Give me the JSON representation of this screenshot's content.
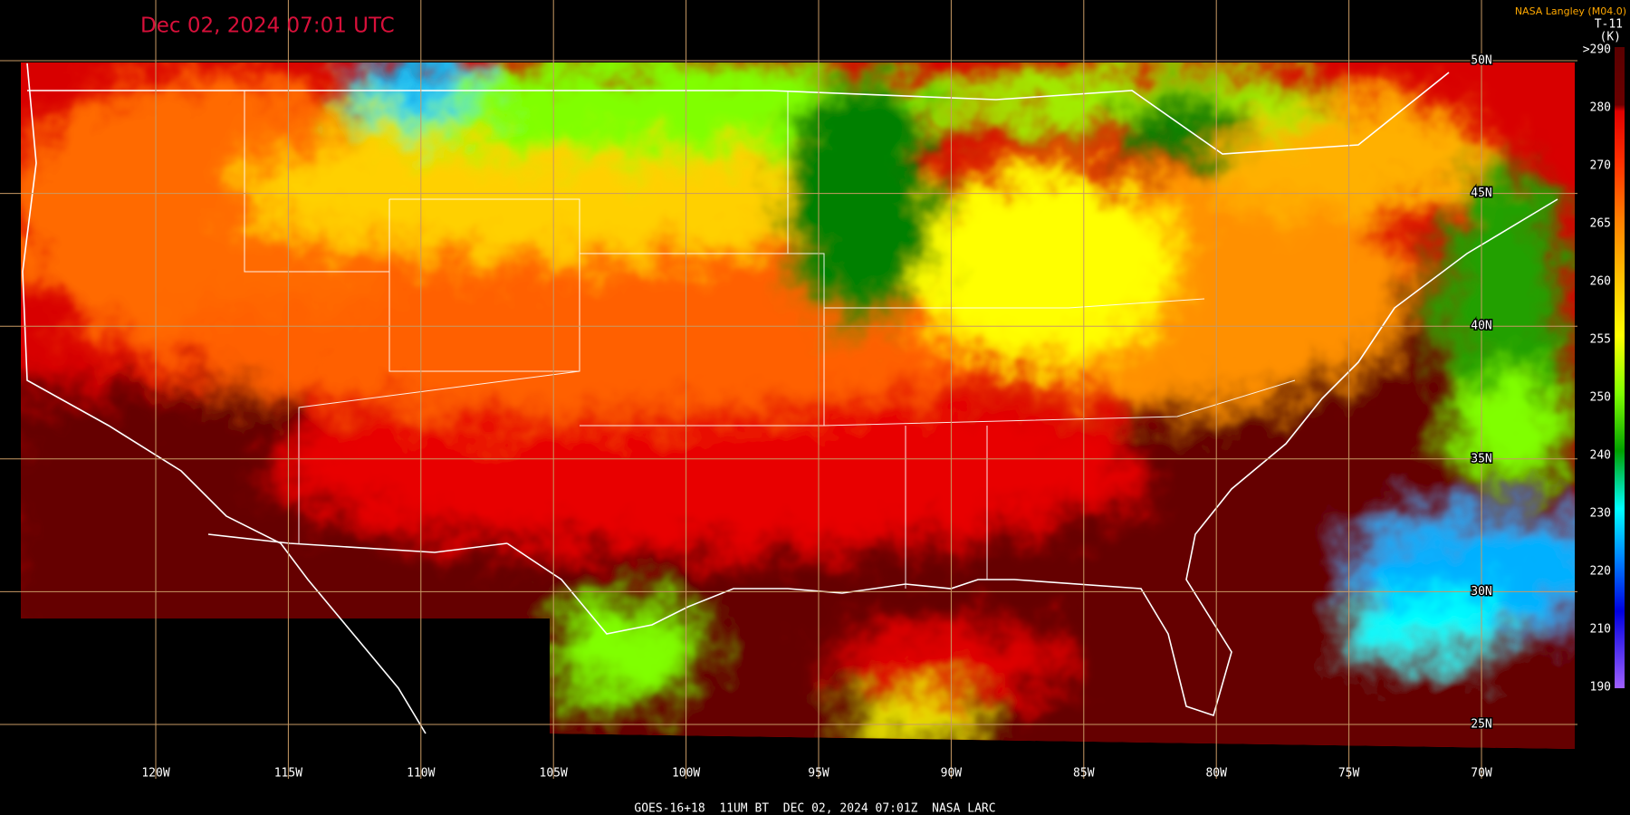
{
  "timestamp": "Dec 02, 2024 07:01 UTC",
  "credit": "NASA Langley (M04.0)",
  "product": "T-11",
  "unit": "(K)",
  "colorbar": {
    "labels": [
      ">290",
      "280",
      "270",
      "265",
      "260",
      "255",
      "250",
      "240",
      "230",
      "220",
      "210",
      "190"
    ]
  },
  "longitudes": [
    "120W",
    "115W",
    "110W",
    "105W",
    "100W",
    "95W",
    "90W",
    "85W",
    "80W",
    "75W",
    "70W"
  ],
  "latitudes": [
    "50N",
    "45N",
    "40N",
    "35N",
    "30N",
    "25N"
  ],
  "footer": "GOES-16+18  11UM BT  DEC 02, 2024 07:01Z  NASA LARC"
}
